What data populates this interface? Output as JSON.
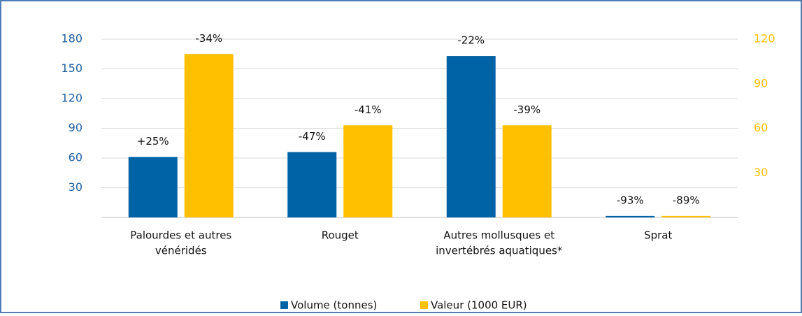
{
  "chart_data": {
    "type": "bar",
    "categories": [
      [
        "Palourdes et autres",
        "vénéridés"
      ],
      [
        "Rouget"
      ],
      [
        "Autres mollusques et",
        "invertébrés aquatiques*"
      ],
      [
        "Sprat"
      ]
    ],
    "series": [
      {
        "name": "Volume (tonnes)",
        "color": "#0063a6",
        "values": [
          61,
          66,
          163,
          1.5
        ],
        "change_labels": [
          "+25%",
          "-47%",
          "-22%",
          "-93%"
        ]
      },
      {
        "name": "Valeur (1000 EUR)",
        "color": "#ffc000",
        "axis": "y2",
        "values": [
          110,
          62,
          62,
          1
        ],
        "change_labels": [
          "-34%",
          "-41%",
          "-39%",
          "-89%"
        ]
      }
    ],
    "ylim": [
      0,
      180
    ],
    "yticks": [
      30,
      60,
      90,
      120,
      150,
      180
    ],
    "y2lim": [
      0,
      120
    ],
    "y2ticks": [
      30,
      60,
      90,
      120
    ],
    "grid": true,
    "legend": "bottom"
  }
}
